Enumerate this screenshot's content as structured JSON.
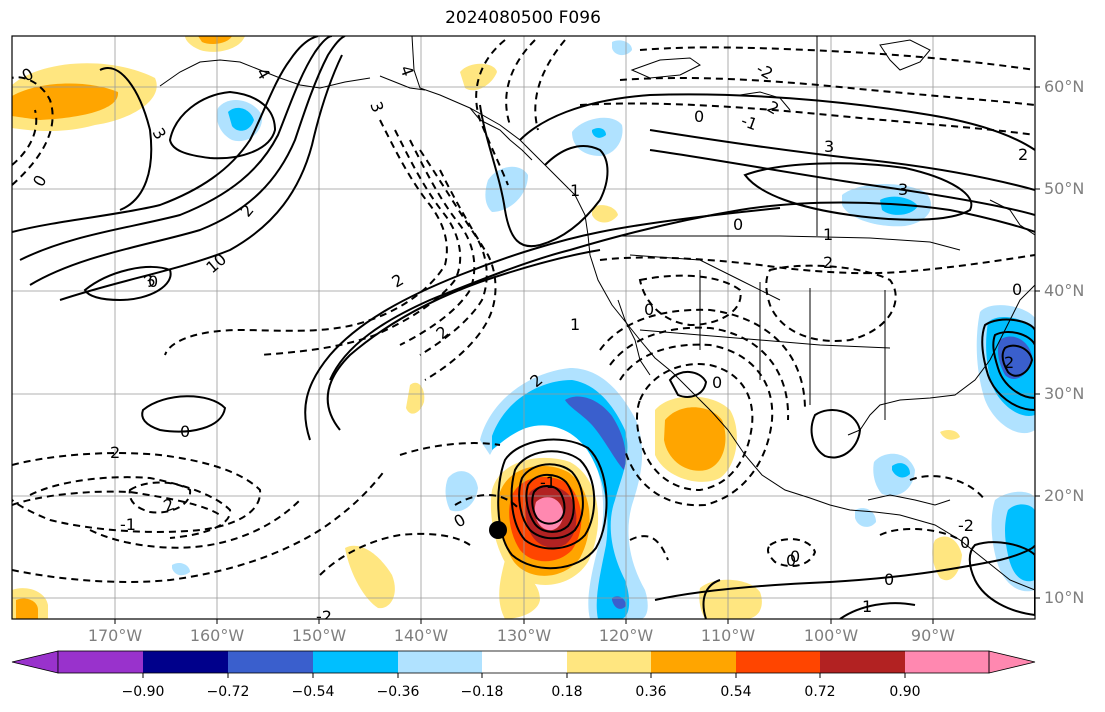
{
  "title": "2024080500 F096",
  "lat_labels": [
    "60°N",
    "50°N",
    "40°N",
    "30°N",
    "20°N",
    "10°N"
  ],
  "lon_labels": [
    "170°W",
    "160°W",
    "150°W",
    "140°W",
    "130°W",
    "120°W",
    "110°W",
    "100°W",
    "90°W"
  ],
  "colorbar": {
    "tick_labels": [
      "−0.90",
      "−0.72",
      "−0.54",
      "−0.36",
      "−0.18",
      "0.18",
      "0.36",
      "0.54",
      "0.72",
      "0.90"
    ],
    "colors": [
      "#9932cc",
      "#00008b",
      "#3a5fcd",
      "#00bfff",
      "#b0e2ff",
      "#ffffff",
      "#ffe680",
      "#ffa500",
      "#ff4500",
      "#b22222",
      "#ff88b0"
    ]
  },
  "contour_labels": [
    "0",
    "3",
    "4",
    "3",
    "0",
    "2",
    "3",
    "10",
    "4",
    "2",
    "2",
    "0",
    "2",
    "0",
    "3",
    "1",
    "2",
    "0",
    "-1",
    "-2",
    "3",
    "2",
    "0",
    "1",
    "2",
    "0",
    "0",
    "2",
    "-2",
    "0",
    "0",
    "-2",
    "-1",
    "0",
    "0",
    "-1",
    "1",
    "0",
    "2",
    "1",
    "2",
    "0"
  ],
  "colors": {
    "land_line": "#000000",
    "grid": "#999999",
    "label_gray": "#7f7f7f"
  },
  "icons": {
    "storm_marker": "black-dot-marker"
  }
}
